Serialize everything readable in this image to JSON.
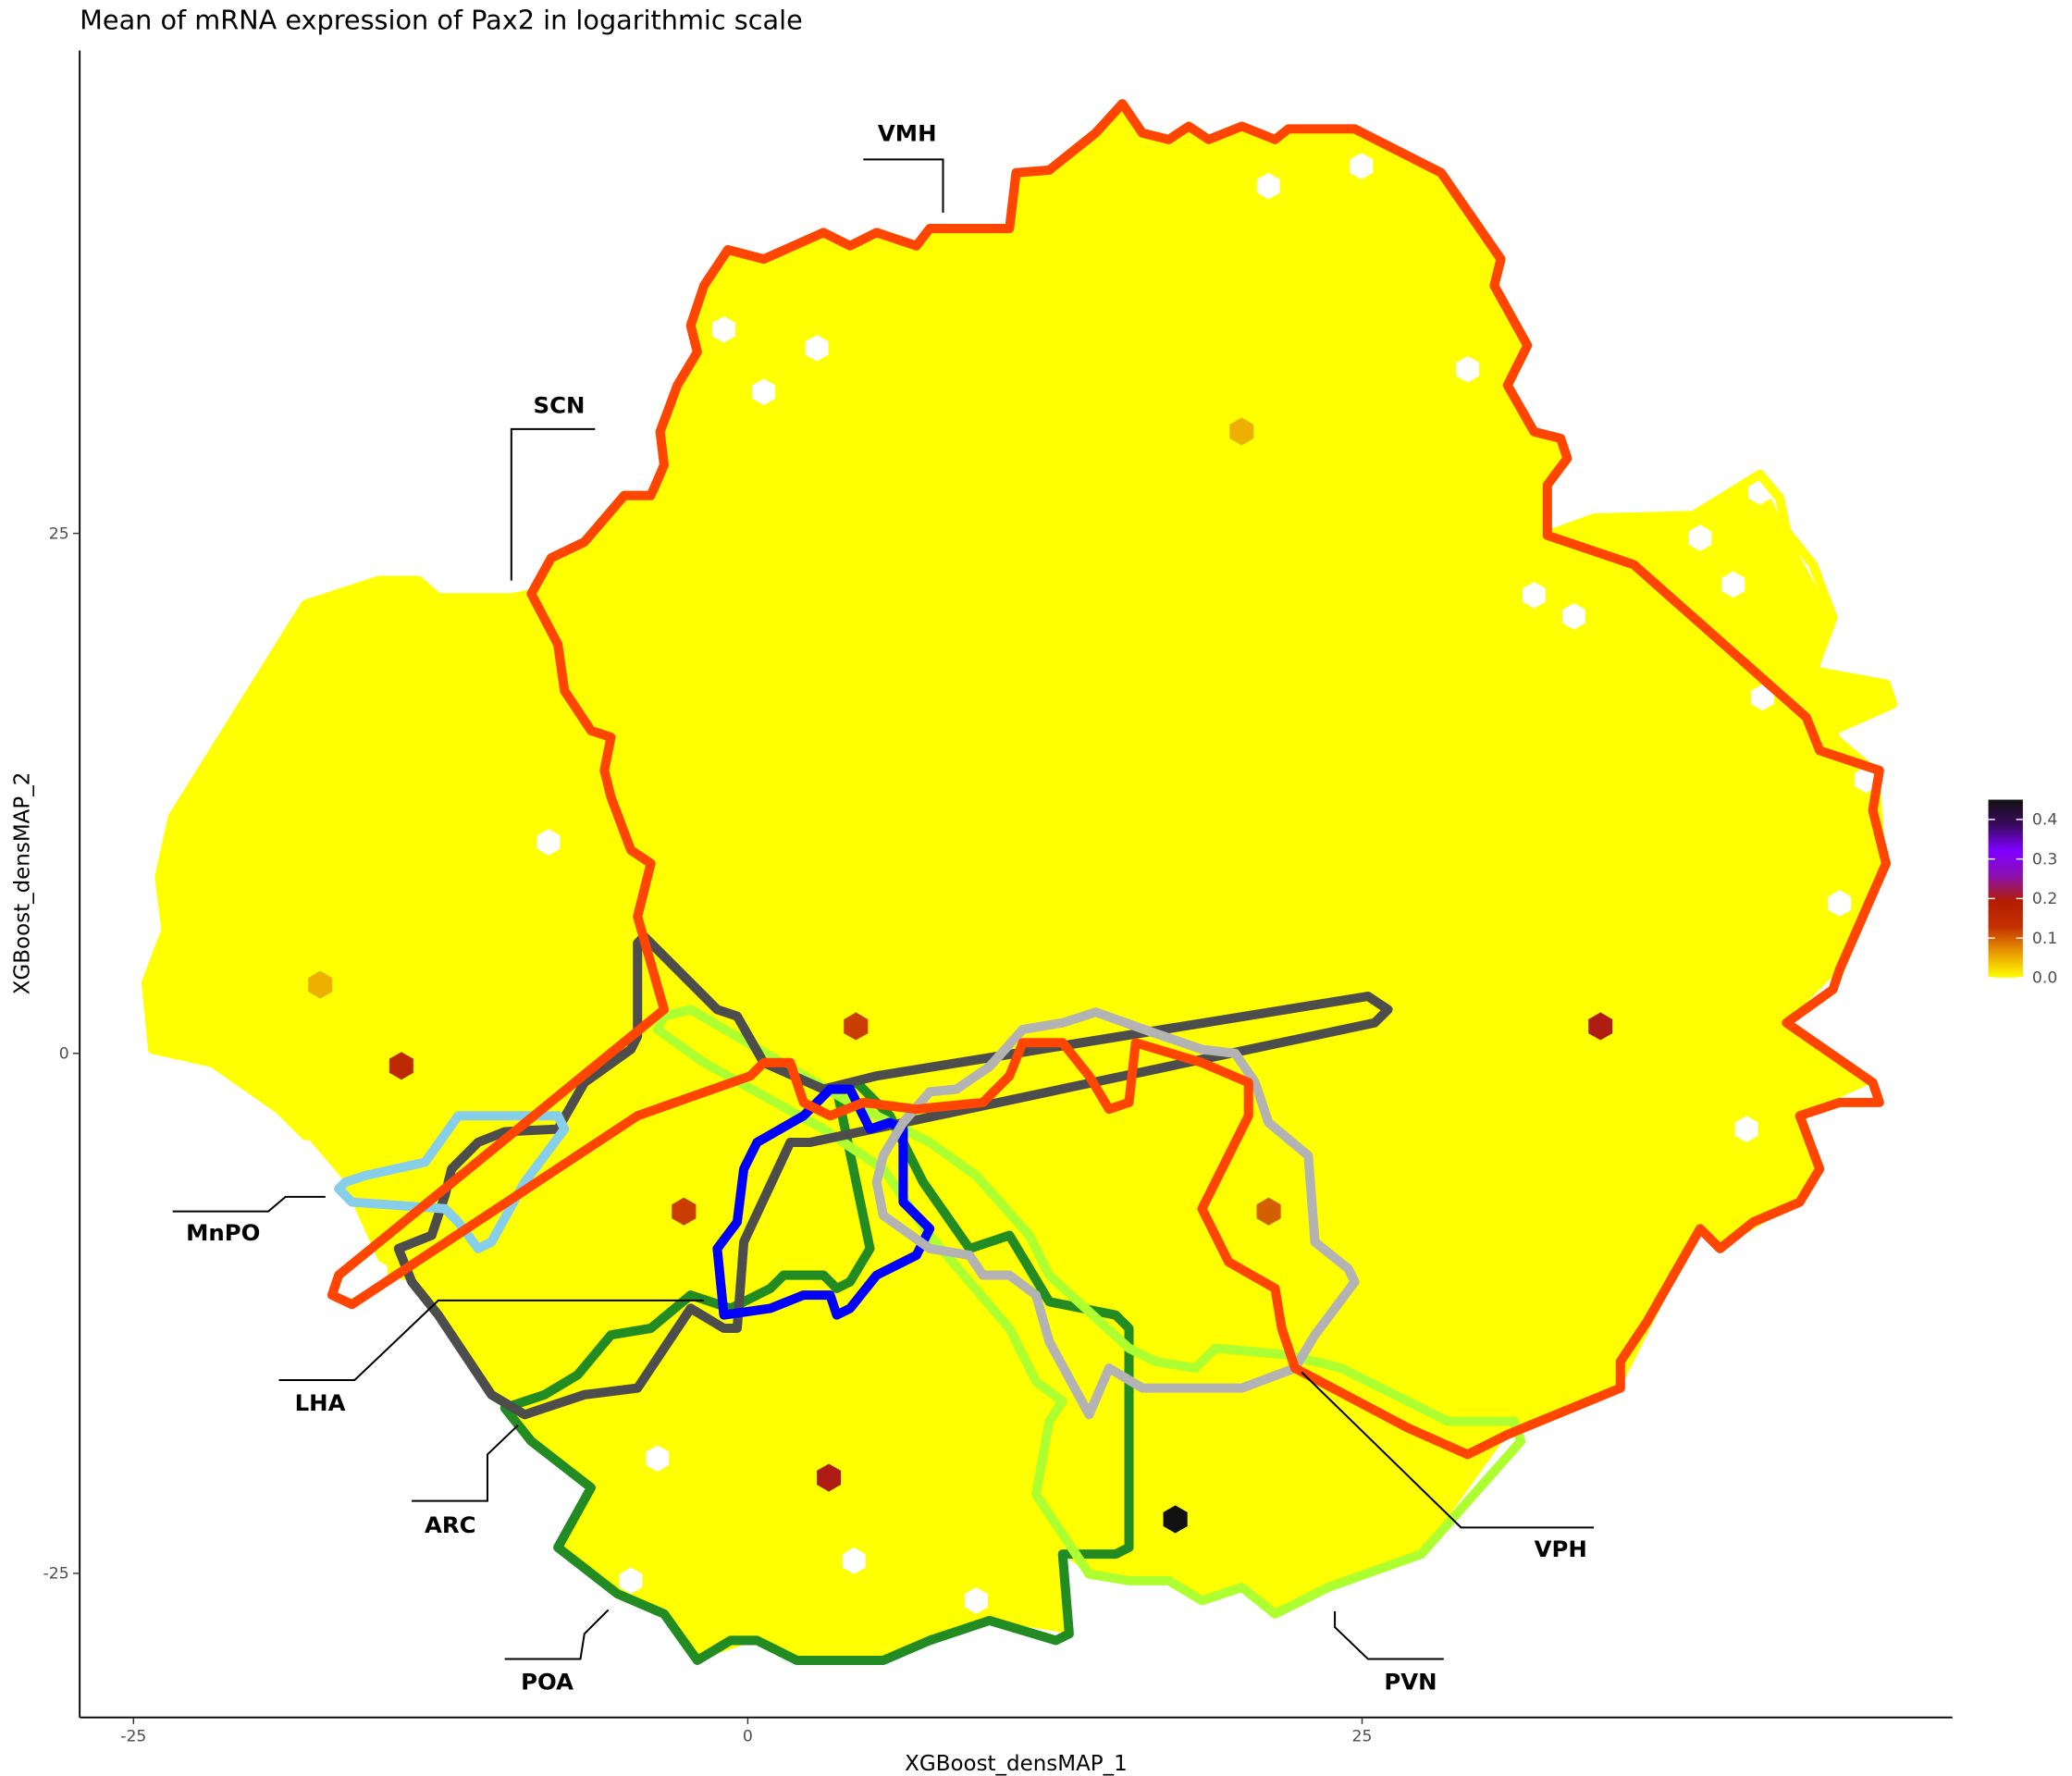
{
  "chart_data": {
    "type": "heatmap",
    "subtype": "hexbin",
    "title": "Mean of mRNA expression of Pax2 in logarithmic scale",
    "xlabel": "XGBoost_densMAP_1",
    "ylabel": "XGBoost_densMAP_2",
    "x_ticks": [
      -25,
      0,
      25
    ],
    "y_ticks": [
      -25,
      0,
      25
    ],
    "xlim": [
      -27,
      49
    ],
    "ylim": [
      -32,
      48
    ],
    "grid": false,
    "background_value": 0.0,
    "background_color": "#ffff00",
    "colorbar": {
      "ticks": [
        "0.0",
        "0.1",
        "0.2",
        "0.3",
        "0.4"
      ],
      "range": [
        0,
        0.45
      ],
      "colors": [
        "#ffff00",
        "#e89a00",
        "#c43000",
        "#b21e00",
        "#8c10b0",
        "#7f00ff",
        "#3a0a60",
        "#111111"
      ],
      "placement": "right"
    },
    "highlighted_bins": [
      {
        "x": 20.1,
        "y": 29.9,
        "value": 0.05
      },
      {
        "x": -17.4,
        "y": 3.3,
        "value": 0.05
      },
      {
        "x": -14.1,
        "y": -0.6,
        "value": 0.15
      },
      {
        "x": 4.4,
        "y": 1.3,
        "value": 0.12
      },
      {
        "x": -2.6,
        "y": -7.6,
        "value": 0.12
      },
      {
        "x": 21.2,
        "y": -7.6,
        "value": 0.1
      },
      {
        "x": 34.7,
        "y": 1.3,
        "value": 0.2
      },
      {
        "x": 3.3,
        "y": -20.4,
        "value": 0.2
      },
      {
        "x": 17.4,
        "y": -22.4,
        "value": 0.45
      }
    ],
    "regions": [
      {
        "name": "VMH",
        "color": "#ff4500"
      },
      {
        "name": "SCN",
        "color": "#ffff00"
      },
      {
        "name": "MnPO",
        "color": "#87ceeb"
      },
      {
        "name": "LHA",
        "color": "#0000ff"
      },
      {
        "name": "ARC",
        "color": "#4d4d4d"
      },
      {
        "name": "POA",
        "color": "#228b22"
      },
      {
        "name": "PVN",
        "color": "#adff2f"
      },
      {
        "name": "VPH",
        "color": "#b3b3b3"
      }
    ]
  }
}
